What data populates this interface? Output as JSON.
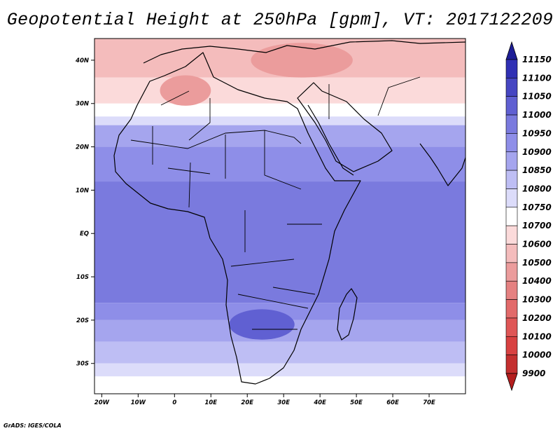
{
  "chart_data": {
    "type": "heatmap",
    "title": "Geopotential Height at 250hPa [gpm], VT: 2017122209",
    "variable": "Geopotential Height",
    "level": "250hPa",
    "units": "gpm",
    "valid_time": "2017122209",
    "xlim": [
      -22,
      80
    ],
    "ylim": [
      -37,
      45
    ],
    "x_ticks": [
      {
        "value": -20,
        "label": "20W"
      },
      {
        "value": -10,
        "label": "10W"
      },
      {
        "value": 0,
        "label": "0"
      },
      {
        "value": 10,
        "label": "10E"
      },
      {
        "value": 20,
        "label": "20E"
      },
      {
        "value": 30,
        "label": "30E"
      },
      {
        "value": 40,
        "label": "40E"
      },
      {
        "value": 50,
        "label": "50E"
      },
      {
        "value": 60,
        "label": "60E"
      },
      {
        "value": 70,
        "label": "70E"
      }
    ],
    "y_ticks": [
      {
        "value": 40,
        "label": "40N"
      },
      {
        "value": 30,
        "label": "30N"
      },
      {
        "value": 20,
        "label": "20N"
      },
      {
        "value": 10,
        "label": "10N"
      },
      {
        "value": 0,
        "label": "EQ"
      },
      {
        "value": -10,
        "label": "10S"
      },
      {
        "value": -20,
        "label": "20S"
      },
      {
        "value": -30,
        "label": "30S"
      }
    ],
    "colorbar": {
      "levels": [
        9900,
        10000,
        10100,
        10200,
        10300,
        10400,
        10500,
        10600,
        10700,
        10750,
        10800,
        10850,
        10900,
        10950,
        11000,
        11050,
        11100,
        11150
      ],
      "labels": [
        "9900",
        "10000",
        "10100",
        "10200",
        "10300",
        "10400",
        "10500",
        "10600",
        "10700",
        "10750",
        "10800",
        "10850",
        "10900",
        "10950",
        "11000",
        "11050",
        "11100",
        "11150"
      ],
      "colors": [
        "#b41e1e",
        "#c42f2f",
        "#d84141",
        "#df5656",
        "#e26a6a",
        "#e58181",
        "#eb9c9c",
        "#f4bcbc",
        "#fbdada",
        "#ffffff",
        "#dcdcfa",
        "#bebef4",
        "#a5a5ee",
        "#8e8ee8",
        "#7a7ade",
        "#6060d2",
        "#4646c2",
        "#3030b4",
        "#1e1e96"
      ]
    },
    "field": {
      "bands_by_latitude": [
        {
          "lat_min": 36,
          "lat_max": 45,
          "value": 10500
        },
        {
          "lat_min": 30,
          "lat_max": 36,
          "value": 10600
        },
        {
          "lat_min": 27,
          "lat_max": 30,
          "value": 10700
        },
        {
          "lat_min": 25,
          "lat_max": 27,
          "value": 10750
        },
        {
          "lat_min": 20,
          "lat_max": 25,
          "value": 10850
        },
        {
          "lat_min": 12,
          "lat_max": 20,
          "value": 10900
        },
        {
          "lat_min": -16,
          "lat_max": 12,
          "value": 10950
        },
        {
          "lat_min": -20,
          "lat_max": -16,
          "value": 10900
        },
        {
          "lat_min": -25,
          "lat_max": -20,
          "value": 10850
        },
        {
          "lat_min": -30,
          "lat_max": -25,
          "value": 10800
        },
        {
          "lat_min": -33,
          "lat_max": -30,
          "value": 10750
        },
        {
          "lat_min": -37,
          "lat_max": -33,
          "value": 10700
        }
      ],
      "features": [
        {
          "name": "subtropical high over southern Africa",
          "center": [
            24,
            -21
          ],
          "value": 11000
        },
        {
          "name": "low over north Africa",
          "center": [
            3,
            33
          ],
          "value": 10400
        },
        {
          "name": "low over eastern Mediterranean",
          "center": [
            35,
            40
          ],
          "value": 10400
        }
      ]
    }
  },
  "footer": {
    "credit": "GrADS: IGES/COLA"
  }
}
